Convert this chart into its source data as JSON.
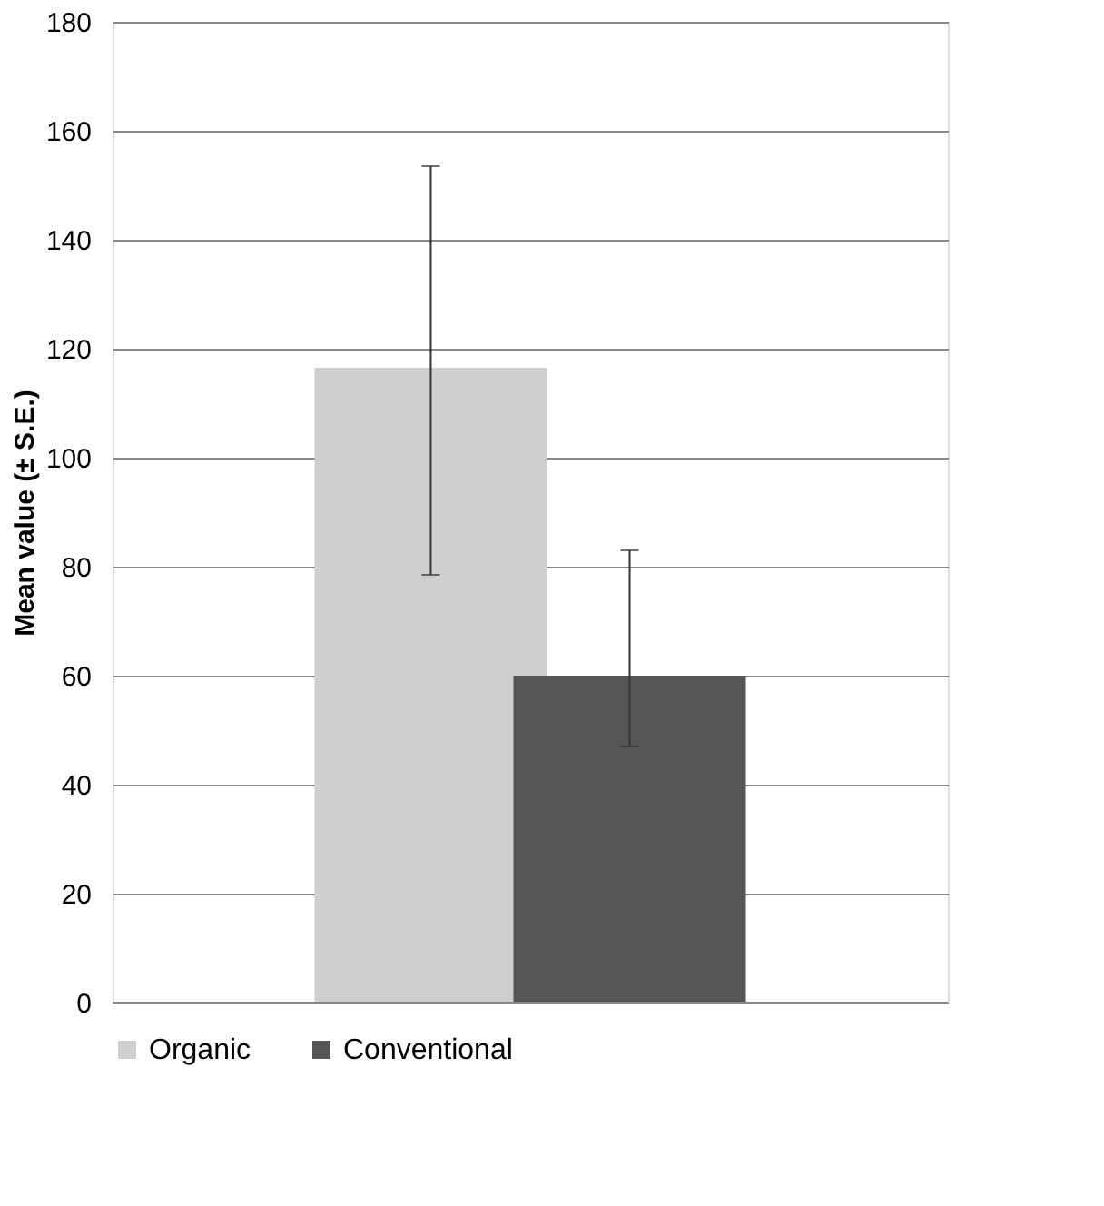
{
  "chart_data": {
    "type": "bar",
    "ylabel": "Mean value (± S.E.)",
    "categories": [
      null
    ],
    "series": [
      {
        "name": "Organic",
        "color": "#cfcfcf",
        "values": [
          116.5
        ],
        "errors": [
          [
            78.5,
            153.5
          ]
        ]
      },
      {
        "name": "Conventional",
        "color": "#555555",
        "values": [
          60
        ],
        "errors": [
          [
            47,
            83
          ]
        ]
      }
    ],
    "ylim": [
      0,
      180
    ],
    "yticks": [
      0,
      20,
      40,
      60,
      80,
      100,
      120,
      140,
      160,
      180
    ],
    "grid": "y",
    "legend": "bottom",
    "tick_labels": "y"
  }
}
